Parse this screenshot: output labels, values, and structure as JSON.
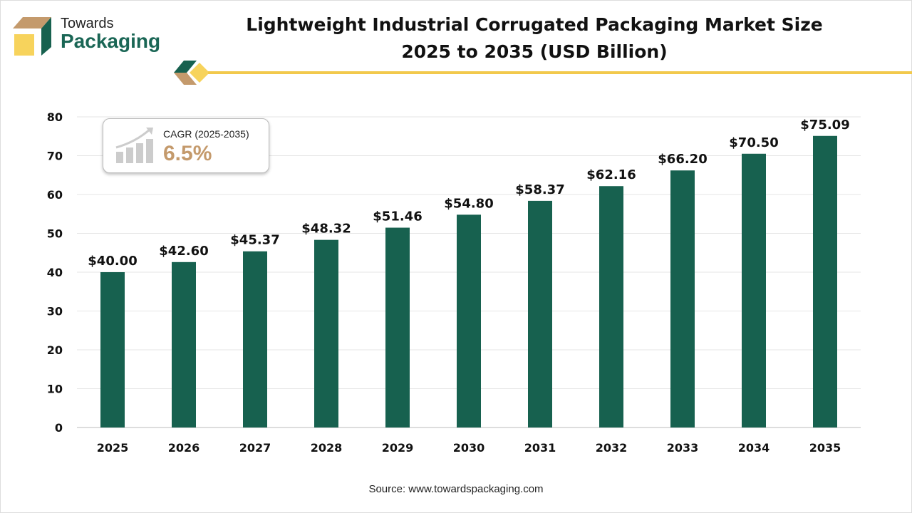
{
  "brand": {
    "line1": "Towards",
    "line2": "Packaging"
  },
  "colors": {
    "bar": "#17614f",
    "accent": "#f2c94c",
    "tan": "#c49a6c"
  },
  "cagr": {
    "label": "CAGR (2025-2035)",
    "value": "6.5%"
  },
  "source": "Source: www.towardspackaging.com",
  "chart_data": {
    "type": "bar",
    "title": "Lightweight Industrial Corrugated Packaging Market Size 2025 to 2035 (USD Billion)",
    "title_lines": [
      "Lightweight Industrial Corrugated Packaging Market Size",
      "2025 to 2035 (USD Billion)"
    ],
    "categories": [
      "2025",
      "2026",
      "2027",
      "2028",
      "2029",
      "2030",
      "2031",
      "2032",
      "2033",
      "2034",
      "2035"
    ],
    "values": [
      40.0,
      42.6,
      45.37,
      48.32,
      51.46,
      54.8,
      58.37,
      62.16,
      66.2,
      70.5,
      75.09
    ],
    "data_labels": [
      "$40.00",
      "$42.60",
      "$45.37",
      "$48.32",
      "$51.46",
      "$54.80",
      "$58.37",
      "$62.16",
      "$66.20",
      "$70.50",
      "$75.09"
    ],
    "xlabel": "",
    "ylabel": "",
    "ylim": [
      0,
      80
    ],
    "yticks": [
      "0",
      "10",
      "20",
      "30",
      "40",
      "50",
      "60",
      "70",
      "80"
    ],
    "grid": true
  }
}
